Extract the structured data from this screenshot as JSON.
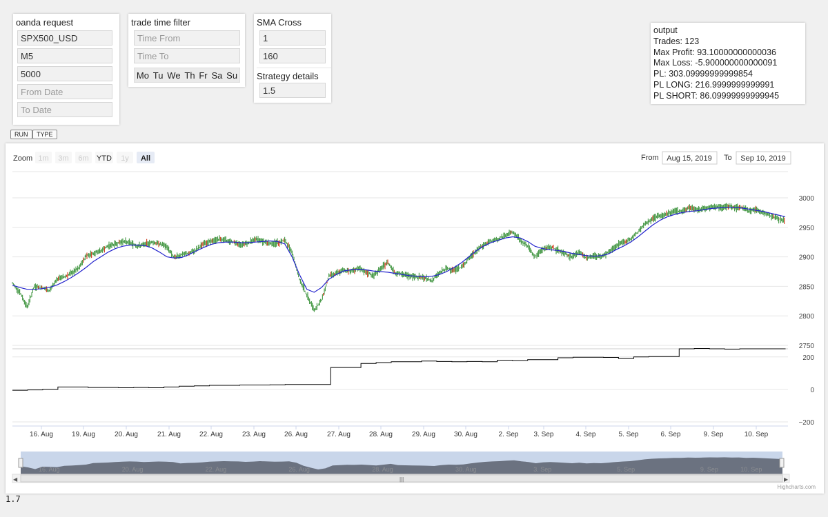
{
  "oanda": {
    "title": "oanda request",
    "instrument": "SPX500_USD",
    "granularity": "M5",
    "count": "5000",
    "from_placeholder": "From Date",
    "to_placeholder": "To Date"
  },
  "trade_filter": {
    "title": "trade time filter",
    "time_from_placeholder": "Time From",
    "time_to_placeholder": "Time To",
    "days": [
      "Mo",
      "Tu",
      "We",
      "Th",
      "Fr",
      "Sa",
      "Su"
    ]
  },
  "sma": {
    "title": "SMA Cross",
    "fast": "1",
    "slow": "160",
    "details_title": "Strategy details",
    "details_value": "1.5"
  },
  "output": {
    "title": "output",
    "lines": [
      "Trades: 123",
      "Max Profit: 93.10000000000036",
      "Max Loss: -5.900000000000091",
      "PL: 303.09999999999854",
      "PL LONG: 216.9999999999991",
      "PL SHORT: 86.09999999999945"
    ]
  },
  "buttons": {
    "run": "RUN",
    "type": "TYPE"
  },
  "chart": {
    "zoom_label": "Zoom",
    "zoom_buttons": [
      {
        "label": "1m",
        "state": "disabled"
      },
      {
        "label": "3m",
        "state": "disabled"
      },
      {
        "label": "6m",
        "state": "disabled"
      },
      {
        "label": "YTD",
        "state": "normal"
      },
      {
        "label": "1y",
        "state": "disabled"
      },
      {
        "label": "All",
        "state": "selected"
      }
    ],
    "from_label": "From",
    "from_value": "Aug 15, 2019",
    "to_label": "To",
    "to_value": "Sep 10, 2019",
    "credits": "Highcharts.com",
    "colors": {
      "candle_up": "#2e8b2e",
      "candle_down": "#cc2200",
      "sma": "#2222cc",
      "pl": "#000000",
      "navigator_fill": "#6b7280",
      "navigator_mask": "#c9d6ea"
    }
  },
  "chart_data": {
    "type": "line",
    "x_ticks": [
      "16. Aug",
      "19. Aug",
      "20. Aug",
      "21. Aug",
      "22. Aug",
      "23. Aug",
      "26. Aug",
      "27. Aug",
      "28. Aug",
      "29. Aug",
      "30. Aug",
      "2. Sep",
      "3. Sep",
      "4. Sep",
      "5. Sep",
      "6. Sep",
      "9. Sep",
      "10. Sep"
    ],
    "price_axis": {
      "ticks": [
        3000,
        2950,
        2900,
        2850,
        2800,
        2750
      ],
      "range": [
        2750,
        3000
      ]
    },
    "pl_axis": {
      "ticks": [
        200,
        0,
        -200
      ],
      "range": [
        -200,
        250
      ]
    },
    "price": [
      2855,
      2840,
      2815,
      2850,
      2848,
      2842,
      2862,
      2866,
      2872,
      2880,
      2902,
      2906,
      2910,
      2918,
      2922,
      2926,
      2924,
      2918,
      2921,
      2925,
      2922,
      2917,
      2898,
      2904,
      2906,
      2912,
      2923,
      2926,
      2930,
      2928,
      2926,
      2920,
      2924,
      2930,
      2926,
      2922,
      2924,
      2928,
      2908,
      2862,
      2835,
      2810,
      2826,
      2868,
      2872,
      2877,
      2876,
      2880,
      2874,
      2868,
      2879,
      2891,
      2873,
      2870,
      2868,
      2866,
      2864,
      2860,
      2873,
      2880,
      2878,
      2882,
      2897,
      2910,
      2920,
      2926,
      2930,
      2937,
      2942,
      2928,
      2918,
      2900,
      2912,
      2917,
      2912,
      2906,
      2900,
      2908,
      2898,
      2902,
      2900,
      2908,
      2918,
      2925,
      2930,
      2942,
      2956,
      2965,
      2970,
      2973,
      2978,
      2977,
      2983,
      2980,
      2982,
      2985,
      2984,
      2986,
      2983,
      2984,
      2978,
      2980,
      2975,
      2970,
      2965,
      2960
    ],
    "sma": [
      2852,
      2848,
      2845,
      2845,
      2846,
      2848,
      2852,
      2858,
      2865,
      2873,
      2882,
      2892,
      2900,
      2908,
      2914,
      2918,
      2920,
      2920,
      2919,
      2915,
      2908,
      2900,
      2898,
      2899,
      2904,
      2910,
      2916,
      2921,
      2924,
      2925,
      2925,
      2924,
      2924,
      2925,
      2926,
      2927,
      2926,
      2922,
      2900,
      2870,
      2845,
      2840,
      2848,
      2862,
      2870,
      2876,
      2878,
      2879,
      2878,
      2876,
      2875,
      2874,
      2872,
      2870,
      2868,
      2867,
      2866,
      2867,
      2870,
      2875,
      2882,
      2890,
      2900,
      2910,
      2918,
      2924,
      2928,
      2932,
      2934,
      2932,
      2926,
      2918,
      2914,
      2912,
      2911,
      2909,
      2906,
      2904,
      2902,
      2901,
      2902,
      2905,
      2912,
      2918,
      2925,
      2934,
      2944,
      2954,
      2962,
      2968,
      2972,
      2975,
      2977,
      2978,
      2980,
      2982,
      2983,
      2984,
      2984,
      2983,
      2981,
      2979,
      2977,
      2974,
      2971,
      2968
    ],
    "pl": [
      -5,
      -3,
      0,
      15,
      15,
      12,
      12,
      10,
      12,
      10,
      15,
      20,
      22,
      25,
      25,
      27,
      27,
      28,
      30,
      30,
      30,
      135,
      135,
      160,
      165,
      170,
      170,
      175,
      172,
      170,
      172,
      170,
      180,
      178,
      183,
      183,
      195,
      198,
      198,
      197,
      190,
      200,
      202,
      202,
      250,
      252,
      250,
      248,
      250,
      250,
      250,
      248
    ],
    "title": "",
    "xlabel": "",
    "ylabel": ""
  },
  "version": "1.7"
}
